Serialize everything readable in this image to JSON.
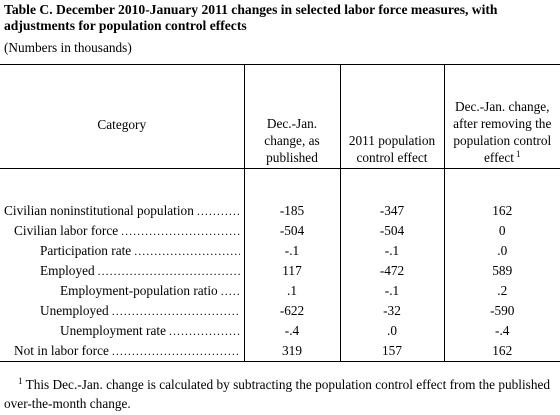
{
  "title": "Table C.  December 2010-January 2011 changes in selected labor force measures, with adjustments for population control effects",
  "units": "(Numbers in thousands)",
  "header": {
    "category": "Category",
    "col1": "Dec.-Jan. change, as published",
    "col2": "2011 population control effect",
    "col3": "Dec.-Jan. change, after removing the population control effect",
    "col3_sup": "1"
  },
  "rows": [
    {
      "label": "Civilian noninstitutional population",
      "published": "-185",
      "control_effect": "-347",
      "adjusted": "162"
    },
    {
      "label": "Civilian labor force",
      "published": "-504",
      "control_effect": "-504",
      "adjusted": "0"
    },
    {
      "label": "Participation rate",
      "published": "-.1",
      "control_effect": "-.1",
      "adjusted": ".0"
    },
    {
      "label": "Employed",
      "published": "117",
      "control_effect": "-472",
      "adjusted": "589"
    },
    {
      "label": "Employment-population ratio",
      "published": ".1",
      "control_effect": "-.1",
      "adjusted": ".2"
    },
    {
      "label": "Unemployed",
      "published": "-622",
      "control_effect": "-32",
      "adjusted": "-590"
    },
    {
      "label": "Unemployment rate",
      "published": "-.4",
      "control_effect": ".0",
      "adjusted": "-.4"
    },
    {
      "label": "Not in labor force",
      "published": "319",
      "control_effect": "157",
      "adjusted": "162"
    }
  ],
  "footnote": {
    "marker": "1",
    "text": "This Dec.-Jan. change is calculated by subtracting the population control effect from the published over-the-month change."
  }
}
